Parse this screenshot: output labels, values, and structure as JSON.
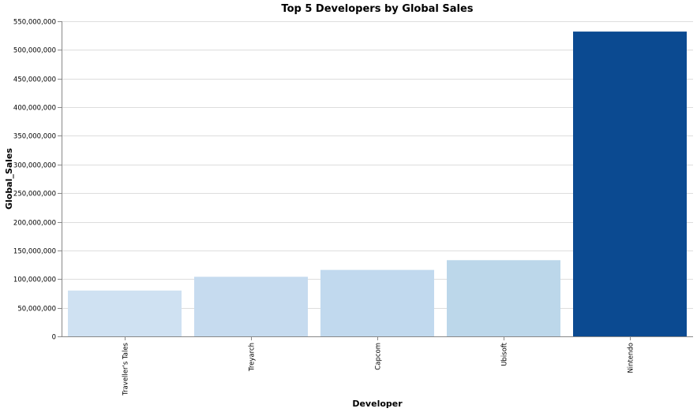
{
  "chart_data": {
    "type": "bar",
    "title": "Top 5 Developers by Global Sales",
    "xlabel": "Developer",
    "ylabel": "Global_Sales",
    "categories": [
      "Traveller's Tales",
      "Treyarch",
      "Capcom",
      "Ubisoft",
      "Nintendo"
    ],
    "values": [
      80000000,
      104000000,
      116000000,
      133000000,
      532000000
    ],
    "ylim": [
      0,
      550000000
    ],
    "yticks": [
      0,
      50000000,
      100000000,
      150000000,
      200000000,
      250000000,
      300000000,
      350000000,
      400000000,
      450000000,
      500000000,
      550000000
    ],
    "ytick_labels": [
      "0",
      "50,000,000",
      "100,000,000",
      "150,000,000",
      "200,000,000",
      "250,000,000",
      "300,000,000",
      "350,000,000",
      "400,000,000",
      "450,000,000",
      "500,000,000",
      "550,000,000"
    ],
    "bar_colors": [
      "#cfe1f2",
      "#c6dbef",
      "#c1d9ee",
      "#bcd7ea",
      "#0b4a91"
    ],
    "grid": true,
    "legend": "none"
  }
}
